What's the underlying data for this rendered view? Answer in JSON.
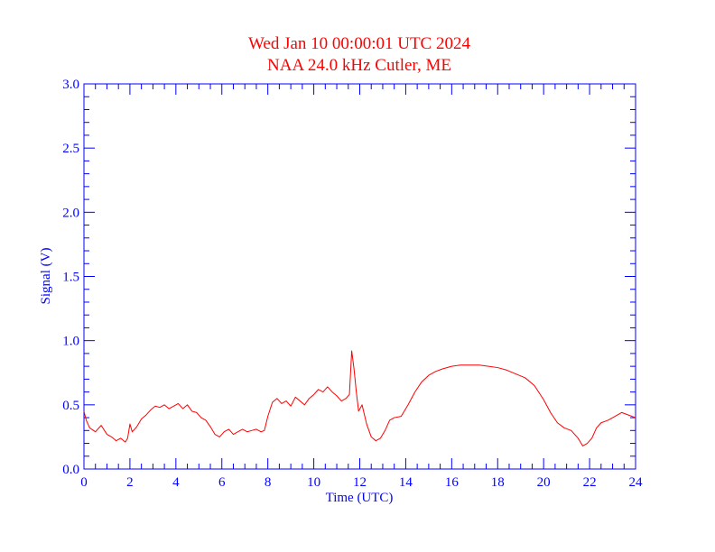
{
  "chart_data": {
    "type": "line",
    "title": "Wed Jan 10 00:00:01 UTC 2024",
    "subtitle": "NAA 24.0 kHz Cutler, ME",
    "xlabel": "Time (UTC)",
    "ylabel": "Signal (V)",
    "xlim": [
      0,
      24
    ],
    "ylim": [
      0,
      3.0
    ],
    "x_ticks": [
      "0",
      "2",
      "4",
      "6",
      "8",
      "10",
      "12",
      "14",
      "16",
      "18",
      "20",
      "22",
      "24"
    ],
    "y_ticks": [
      "0.0",
      "0.5",
      "1.0",
      "1.5",
      "2.0",
      "2.5",
      "3.0"
    ],
    "grid": false,
    "legend": "none",
    "colors": {
      "title": "#ff0000",
      "axes": "#0000ff",
      "series": "#ff0000"
    },
    "series": [
      {
        "x": [
          0.0,
          0.1,
          0.25,
          0.5,
          0.75,
          1.0,
          1.2,
          1.4,
          1.6,
          1.8,
          1.9,
          2.0,
          2.1,
          2.3,
          2.5,
          2.7,
          2.9,
          3.1,
          3.3,
          3.5,
          3.7,
          3.9,
          4.1,
          4.3,
          4.5,
          4.7,
          4.9,
          5.1,
          5.3,
          5.5,
          5.7,
          5.9,
          6.1,
          6.3,
          6.5,
          6.7,
          6.9,
          7.1,
          7.3,
          7.5,
          7.7,
          7.85,
          8.0,
          8.2,
          8.4,
          8.6,
          8.8,
          9.0,
          9.2,
          9.4,
          9.6,
          9.8,
          10.0,
          10.2,
          10.4,
          10.6,
          10.8,
          11.0,
          11.2,
          11.4,
          11.55,
          11.65,
          11.75,
          11.85,
          11.95,
          12.1,
          12.3,
          12.5,
          12.7,
          12.9,
          13.1,
          13.3,
          13.5,
          13.8,
          14.1,
          14.4,
          14.7,
          15.0,
          15.3,
          15.6,
          16.0,
          16.4,
          16.8,
          17.2,
          17.6,
          18.0,
          18.4,
          18.8,
          19.2,
          19.6,
          20.0,
          20.3,
          20.6,
          20.9,
          21.2,
          21.5,
          21.7,
          21.9,
          22.1,
          22.3,
          22.5,
          22.8,
          23.1,
          23.4,
          23.7,
          24.0
        ],
        "values": [
          0.45,
          0.38,
          0.32,
          0.29,
          0.34,
          0.27,
          0.25,
          0.22,
          0.24,
          0.21,
          0.24,
          0.35,
          0.29,
          0.33,
          0.39,
          0.42,
          0.46,
          0.49,
          0.48,
          0.5,
          0.47,
          0.49,
          0.51,
          0.47,
          0.5,
          0.45,
          0.44,
          0.4,
          0.38,
          0.33,
          0.27,
          0.25,
          0.29,
          0.31,
          0.27,
          0.29,
          0.31,
          0.29,
          0.3,
          0.31,
          0.29,
          0.3,
          0.41,
          0.52,
          0.55,
          0.51,
          0.53,
          0.49,
          0.56,
          0.53,
          0.5,
          0.55,
          0.58,
          0.62,
          0.6,
          0.64,
          0.6,
          0.57,
          0.53,
          0.55,
          0.58,
          0.92,
          0.78,
          0.6,
          0.45,
          0.5,
          0.35,
          0.25,
          0.22,
          0.24,
          0.3,
          0.38,
          0.4,
          0.41,
          0.5,
          0.6,
          0.68,
          0.73,
          0.76,
          0.78,
          0.8,
          0.81,
          0.81,
          0.81,
          0.8,
          0.79,
          0.77,
          0.74,
          0.71,
          0.65,
          0.54,
          0.44,
          0.36,
          0.32,
          0.3,
          0.24,
          0.18,
          0.2,
          0.24,
          0.32,
          0.36,
          0.38,
          0.41,
          0.44,
          0.42,
          0.4
        ]
      }
    ]
  }
}
